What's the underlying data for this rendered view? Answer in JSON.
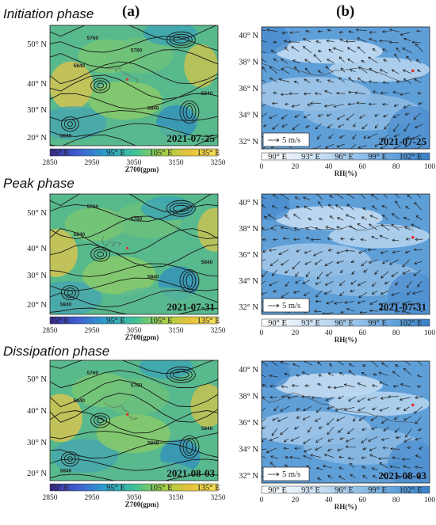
{
  "column_labels": {
    "a": "(a)",
    "b": "(b)"
  },
  "phases": [
    {
      "label": "Initiation phase",
      "date": "2021-07-25"
    },
    {
      "label": "Peak phase",
      "date": "2021-07-31"
    },
    {
      "label": "Dissipation phase",
      "date": "2021-08-03"
    }
  ],
  "left_panels": {
    "lat_ticks": [
      "50° N",
      "40° N",
      "30° N",
      "20° N"
    ],
    "lon_ticks": [
      "75° E",
      "95° E",
      "105° E",
      "135° E"
    ],
    "colorbar": {
      "title": "Z700(gpm)",
      "ticks": [
        "2850",
        "2950",
        "3050",
        "3150",
        "3250"
      ],
      "colors": [
        "#3b2a8f",
        "#3f5fd0",
        "#2ea0c8",
        "#3fbf9a",
        "#9fcf4a",
        "#e6c23a",
        "#f6e05a"
      ]
    },
    "contour_labels": [
      "5760",
      "5840",
      "5680"
    ]
  },
  "right_panels": {
    "lat_ticks": [
      "40° N",
      "38° N",
      "36° N",
      "34° N",
      "32° N"
    ],
    "lon_ticks": [
      "90° E",
      "93° E",
      "96° E",
      "99° E",
      "102° E"
    ],
    "vector_key": "5 m/s",
    "colorbar": {
      "title": "RH(%)",
      "ticks": [
        "0",
        "20",
        "40",
        "60",
        "80",
        "100"
      ],
      "colors": [
        "#ffffff",
        "#e3eef9",
        "#bcd7f0",
        "#8ebde6",
        "#5ea0da",
        "#3a7fc6"
      ]
    }
  }
}
